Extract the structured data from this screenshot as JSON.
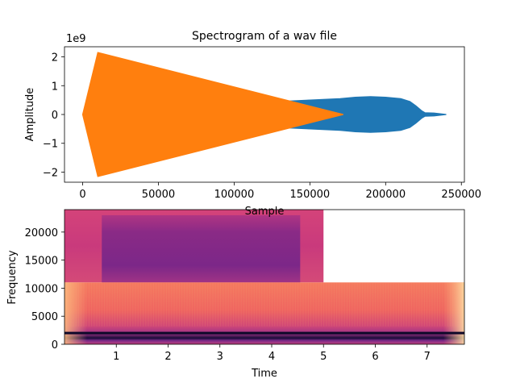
{
  "chart_data": [
    {
      "type": "line",
      "title": "Spectrogram of a wav file",
      "xlabel": "Sample",
      "ylabel": "Amplitude",
      "y_offset_text": "1e9",
      "xlim": [
        -12000,
        252000
      ],
      "ylim": [
        -2.35,
        2.35
      ],
      "xticks": [
        0,
        50000,
        100000,
        150000,
        200000,
        250000
      ],
      "xtick_labels": [
        "0",
        "50000",
        "100000",
        "150000",
        "200000",
        "250000"
      ],
      "yticks": [
        -2,
        -1,
        0,
        1,
        2
      ],
      "ytick_labels": [
        "−2",
        "−1",
        "0",
        "1",
        "2"
      ],
      "grid": false,
      "series": [
        {
          "color": "#1f77b4",
          "envelope_x": [
            0,
            50000,
            100000,
            130000,
            150000,
            170000,
            180000,
            190000,
            200000,
            210000,
            216000,
            220000,
            224000,
            226000,
            232000,
            240000
          ],
          "envelope_y": [
            0.0,
            0.3,
            0.4,
            0.45,
            0.5,
            0.55,
            0.6,
            0.62,
            0.6,
            0.55,
            0.45,
            0.3,
            0.12,
            0.06,
            0.05,
            0.0
          ]
        },
        {
          "color": "#ff7f0e",
          "envelope_x": [
            0,
            10000,
            172000
          ],
          "envelope_y": [
            0.0,
            2.15,
            0.0
          ]
        }
      ]
    },
    {
      "type": "heatmap",
      "xlabel": "Time",
      "ylabel": "Frequency",
      "xlim": [
        0,
        7.72
      ],
      "ylim": [
        0,
        24000
      ],
      "xticks": [
        1,
        2,
        3,
        4,
        5,
        6,
        7
      ],
      "xtick_labels": [
        "1",
        "2",
        "3",
        "4",
        "5",
        "6",
        "7"
      ],
      "yticks": [
        0,
        5000,
        10000,
        15000,
        20000
      ],
      "ytick_labels": [
        "0",
        "5000",
        "10000",
        "15000",
        "20000"
      ],
      "colormap": "magma",
      "layers": [
        {
          "x_range": [
            0,
            5.0
          ],
          "y_range": [
            11025,
            24000
          ],
          "color": "#d64a7a"
        },
        {
          "x_range": [
            0.72,
            4.55
          ],
          "y_range": [
            11025,
            23000
          ],
          "color": "#b8307f"
        },
        {
          "x_range": [
            0,
            7.72
          ],
          "y_range": [
            0,
            11025
          ],
          "color": "#f16a5e"
        }
      ],
      "dark_line_frequency": 2000
    }
  ]
}
